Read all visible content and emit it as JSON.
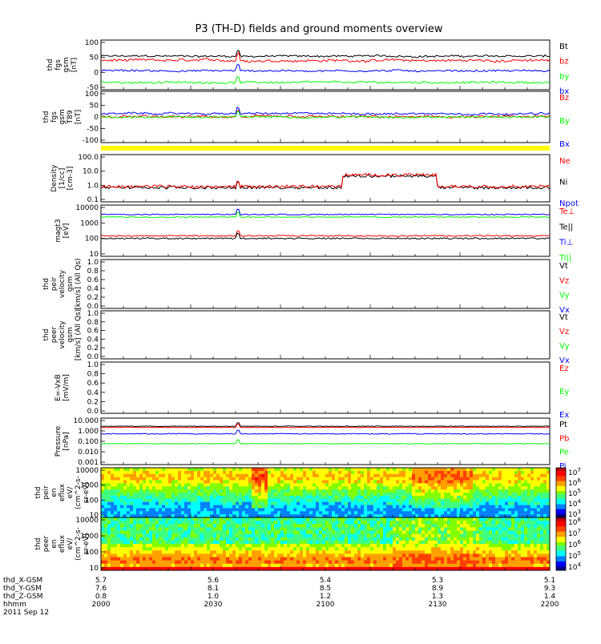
{
  "title": "P3 (TH-D) fields and ground moments overview",
  "colors": {
    "black": "#000000",
    "red": "#ff0000",
    "green": "#00ff00",
    "blue": "#0000ff",
    "yellow": "#ffff00"
  },
  "chart_data": [
    {
      "type": "line",
      "id": "fgs",
      "ylabel": [
        "thd",
        "fgs",
        "gsm",
        "[nT]"
      ],
      "yticks": [
        "100",
        "50",
        "0",
        "-50"
      ],
      "legend": [
        {
          "name": "Bt",
          "color": "#000000"
        },
        {
          "name": "bz",
          "color": "#ff0000"
        },
        {
          "name": "by",
          "color": "#00ff00"
        },
        {
          "name": "bx",
          "color": "#0000ff"
        }
      ],
      "series": [
        {
          "name": "Bt",
          "color": "#000000",
          "level": 55,
          "noise": 6
        },
        {
          "name": "bz",
          "color": "#ff0000",
          "level": 40,
          "noise": 8
        },
        {
          "name": "by",
          "color": "#00ff00",
          "level": -35,
          "noise": 6
        },
        {
          "name": "bx",
          "color": "#0000ff",
          "level": 5,
          "noise": 6
        }
      ],
      "ylim": [
        -60,
        110
      ],
      "log": false
    },
    {
      "type": "line",
      "id": "fgs_t69",
      "ylabel": [
        "thd",
        "fgs",
        "gsm",
        "T89",
        "[nT]"
      ],
      "yticks": [
        "100",
        "50",
        "0",
        "-50",
        "-100"
      ],
      "legend": [
        {
          "name": "Bz",
          "color": "#ff0000"
        },
        {
          "name": "By",
          "color": "#00ff00"
        },
        {
          "name": "Bx",
          "color": "#0000ff"
        }
      ],
      "series": [
        {
          "name": "Bz",
          "color": "#ff0000",
          "level": -5,
          "noise": 10
        },
        {
          "name": "By",
          "color": "#00ff00",
          "level": -5,
          "noise": 7
        },
        {
          "name": "Bx",
          "color": "#0000ff",
          "level": 10,
          "noise": 8
        }
      ],
      "ylim": [
        -120,
        110
      ],
      "log": false
    },
    {
      "type": "bar",
      "id": "strip",
      "color": "#ffff00"
    },
    {
      "type": "line",
      "id": "density",
      "ylabel": [
        "Density",
        "[1/cc]",
        "[cm-3]"
      ],
      "yticks": [
        "100.0",
        "10.0",
        "1.0",
        "0.1"
      ],
      "legend": [
        {
          "name": "Ne",
          "color": "#ff0000"
        },
        {
          "name": "Ni",
          "color": "#000000"
        },
        {
          "name": "Npot",
          "color": "#0000ff"
        }
      ],
      "series": [
        {
          "name": "Ni",
          "color": "#000000",
          "level": 1.0,
          "noise": 0.5
        },
        {
          "name": "Ne",
          "color": "#ff0000",
          "level": 1.2,
          "noise": 0.5
        }
      ],
      "ylim": [
        0.1,
        200
      ],
      "log": true
    },
    {
      "type": "line",
      "id": "magt3",
      "ylabel": [
        "magt3",
        "[eV]"
      ],
      "yticks": [
        "10000",
        "1000",
        "100",
        "10"
      ],
      "legend": [
        {
          "name": "Te⊥",
          "color": "#ff0000"
        },
        {
          "name": "Te||",
          "color": "#000000"
        },
        {
          "name": "Ti⊥",
          "color": "#0000ff"
        },
        {
          "name": "Ti||",
          "color": "#00ff00"
        }
      ],
      "series": [
        {
          "name": "Ti⊥",
          "color": "#0000ff",
          "level": 3.45,
          "noise": 0.15
        },
        {
          "name": "Ti||",
          "color": "#00ff00",
          "level": 3.3,
          "noise": 0.15
        },
        {
          "name": "Te⊥",
          "color": "#ff0000",
          "level": 2.2,
          "noise": 0.2
        },
        {
          "name": "Te||",
          "color": "#000000",
          "level": 2.05,
          "noise": 0.2
        }
      ],
      "ylim": [
        10,
        10000
      ],
      "log": true
    },
    {
      "type": "line",
      "id": "peir_v",
      "ylabel": [
        "thd",
        "peir",
        "velocity",
        "gsm",
        "[km/s] (All Qs)"
      ],
      "yticks": [
        "1.0",
        "0.8",
        "0.6",
        "0.4",
        "0.2",
        "0.0"
      ],
      "legend": [
        {
          "name": "Vt",
          "color": "#000000"
        },
        {
          "name": "Vz",
          "color": "#ff0000"
        },
        {
          "name": "Vy",
          "color": "#00ff00"
        },
        {
          "name": "Vx",
          "color": "#0000ff"
        }
      ],
      "series": [],
      "ylim": [
        0,
        1
      ],
      "log": false
    },
    {
      "type": "line",
      "id": "peer_v",
      "ylabel": [
        "thd",
        "peer",
        "velocity",
        "gsm",
        "[km/s] (All Qs)"
      ],
      "yticks": [
        "1.0",
        "0.8",
        "0.6",
        "0.4",
        "0.2",
        "0.0"
      ],
      "legend": [
        {
          "name": "Vt",
          "color": "#000000"
        },
        {
          "name": "Vz",
          "color": "#ff0000"
        },
        {
          "name": "Vy",
          "color": "#00ff00"
        },
        {
          "name": "Vx",
          "color": "#0000ff"
        }
      ],
      "series": [],
      "ylim": [
        0,
        1
      ],
      "log": false
    },
    {
      "type": "line",
      "id": "efield",
      "ylabel": [
        "E=-VxB",
        "[mV/m]"
      ],
      "yticks": [
        "1.0",
        "0.8",
        "0.6",
        "0.4",
        "0.2",
        "0.0"
      ],
      "legend": [
        {
          "name": "Ez",
          "color": "#ff0000"
        },
        {
          "name": "Ey",
          "color": "#00ff00"
        },
        {
          "name": "Ex",
          "color": "#0000ff"
        }
      ],
      "series": [],
      "ylim": [
        0,
        1
      ],
      "log": false
    },
    {
      "type": "line",
      "id": "pressure",
      "ylabel": [
        "Pressure",
        "[nPa]"
      ],
      "yticks": [
        "10.000",
        "1.000",
        "0.100",
        "0.010",
        "0.001"
      ],
      "legend": [
        {
          "name": "Pt",
          "color": "#000000"
        },
        {
          "name": "Pb",
          "color": "#ff0000"
        },
        {
          "name": "Pe",
          "color": "#00ff00"
        },
        {
          "name": "Pi",
          "color": "#0000ff"
        }
      ],
      "series": [
        {
          "name": "Pt",
          "color": "#000000",
          "level": 0.3,
          "noise": 0.12
        },
        {
          "name": "Pb",
          "color": "#ff0000",
          "level": 0.2,
          "noise": 0.1
        },
        {
          "name": "Pi",
          "color": "#0000ff",
          "level": -0.35,
          "noise": 0.18
        },
        {
          "name": "Pe",
          "color": "#00ff00",
          "level": -1.2,
          "noise": 0.12
        }
      ],
      "ylim": [
        0.001,
        10
      ],
      "log": true
    },
    {
      "type": "heatmap",
      "id": "peir_en",
      "ylabel": [
        "thd",
        "peir",
        "en",
        "eflux",
        "eV/",
        "(cm^2-s-",
        "sr-eV)"
      ],
      "yticks": [
        "10000",
        "1000",
        "100",
        "10"
      ],
      "colorbar": [
        "10^7",
        "10^6",
        "10^5",
        "10^4",
        "10^3"
      ],
      "ylim": [
        5,
        30000
      ],
      "log": true
    },
    {
      "type": "heatmap",
      "id": "peer_en",
      "ylabel": [
        "thd",
        "peer",
        "en",
        "eflux",
        "eV/",
        "(cm^2-s-",
        "sr-eV)"
      ],
      "yticks": [
        "10000",
        "1000",
        "100",
        "10"
      ],
      "colorbar": [
        "10^8",
        "10^7",
        "10^6",
        "10^5",
        "10^4"
      ],
      "ylim": [
        5,
        30000
      ],
      "log": true
    }
  ],
  "xaxis": {
    "rows": [
      {
        "label": "thd_X-GSM",
        "values": [
          "5.7",
          "5.6",
          "5.4",
          "5.3",
          "5.1"
        ]
      },
      {
        "label": "thd_Y-GSM",
        "values": [
          "7.6",
          "8.1",
          "8.5",
          "8.9",
          "9.3"
        ]
      },
      {
        "label": "thd_Z-GSM",
        "values": [
          "0.8",
          "1.0",
          "1.2",
          "1.3",
          "1.4"
        ]
      },
      {
        "label": "hhmm",
        "values": [
          "2000",
          "2030",
          "2100",
          "2130",
          "2200"
        ]
      }
    ],
    "date": "2011 Sep 12"
  }
}
